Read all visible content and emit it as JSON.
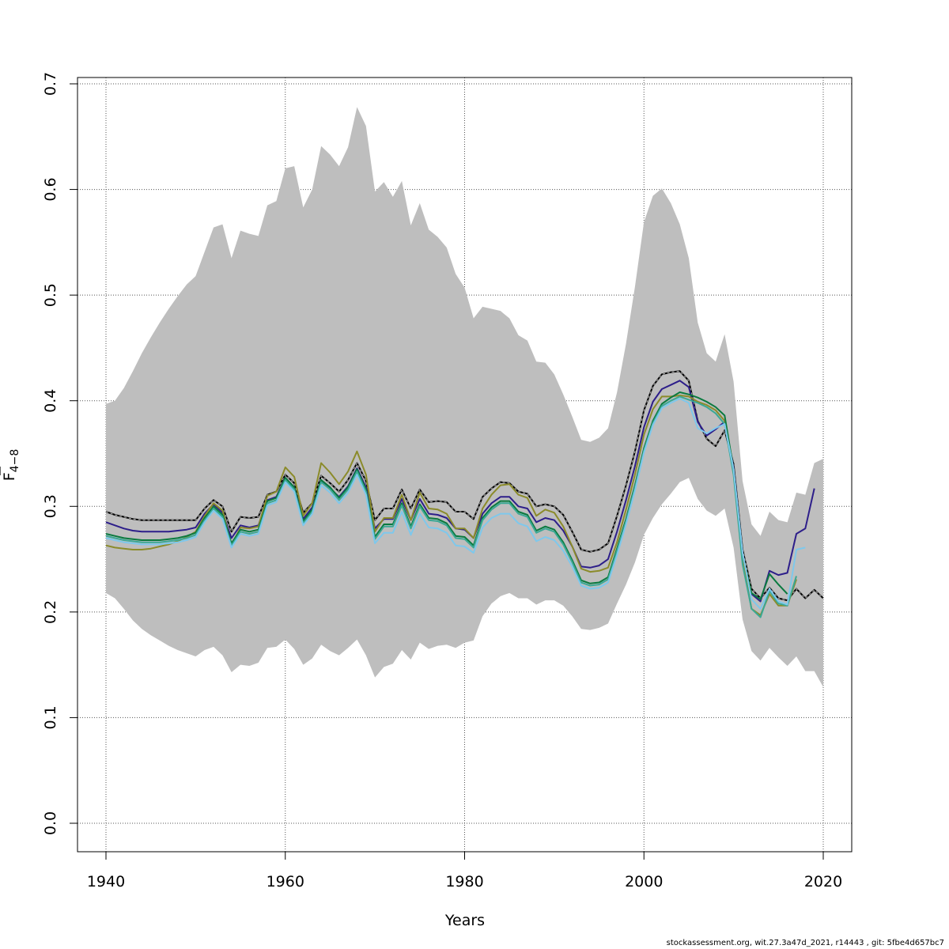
{
  "chart_data": {
    "type": "line",
    "xlabel": "Years",
    "ylabel": "F",
    "ylabel_sub": "4−8",
    "xlim": [
      1940,
      2020
    ],
    "ylim": [
      0.0,
      0.7
    ],
    "xticks": [
      "1940",
      "1960",
      "1980",
      "2000",
      "2020"
    ],
    "yticks": [
      "0.0",
      "0.1",
      "0.2",
      "0.3",
      "0.4",
      "0.5",
      "0.6",
      "0.7"
    ],
    "grid": true,
    "band_color": "#bebebe",
    "band_x": [
      1940,
      1941,
      1942,
      1943,
      1944,
      1945,
      1946,
      1947,
      1948,
      1949,
      1950,
      1951,
      1952,
      1953,
      1954,
      1955,
      1956,
      1957,
      1958,
      1959,
      1960,
      1961,
      1962,
      1963,
      1964,
      1965,
      1966,
      1967,
      1968,
      1969,
      1970,
      1971,
      1972,
      1973,
      1974,
      1975,
      1976,
      1977,
      1978,
      1979,
      1980,
      1981,
      1982,
      1983,
      1984,
      1985,
      1986,
      1987,
      1988,
      1989,
      1990,
      1991,
      1992,
      1993,
      1994,
      1995,
      1996,
      1997,
      1998,
      1999,
      2000,
      2001,
      2002,
      2003,
      2004,
      2005,
      2006,
      2007,
      2008,
      2009,
      2010,
      2011,
      2012,
      2013,
      2014,
      2015,
      2016,
      2017,
      2018,
      2019,
      2020
    ],
    "band_upper": [
      0.397,
      0.4,
      0.412,
      0.428,
      0.445,
      0.46,
      0.474,
      0.487,
      0.499,
      0.51,
      0.518,
      0.541,
      0.564,
      0.567,
      0.535,
      0.561,
      0.558,
      0.556,
      0.585,
      0.589,
      0.62,
      0.622,
      0.583,
      0.6,
      0.641,
      0.633,
      0.622,
      0.64,
      0.678,
      0.66,
      0.598,
      0.607,
      0.593,
      0.608,
      0.566,
      0.587,
      0.562,
      0.555,
      0.545,
      0.52,
      0.507,
      0.478,
      0.489,
      0.487,
      0.485,
      0.478,
      0.462,
      0.457,
      0.437,
      0.436,
      0.425,
      0.406,
      0.385,
      0.363,
      0.361,
      0.365,
      0.374,
      0.408,
      0.454,
      0.508,
      0.569,
      0.594,
      0.601,
      0.587,
      0.567,
      0.535,
      0.474,
      0.445,
      0.437,
      0.463,
      0.418,
      0.324,
      0.283,
      0.272,
      0.295,
      0.287,
      0.285,
      0.313,
      0.311,
      0.341,
      0.345
    ],
    "band_lower": [
      0.218,
      0.213,
      0.203,
      0.192,
      0.184,
      0.178,
      0.173,
      0.168,
      0.164,
      0.161,
      0.158,
      0.164,
      0.167,
      0.159,
      0.143,
      0.15,
      0.149,
      0.152,
      0.166,
      0.167,
      0.174,
      0.165,
      0.15,
      0.156,
      0.169,
      0.163,
      0.159,
      0.166,
      0.174,
      0.159,
      0.138,
      0.148,
      0.151,
      0.164,
      0.155,
      0.171,
      0.165,
      0.168,
      0.169,
      0.166,
      0.171,
      0.173,
      0.196,
      0.208,
      0.215,
      0.218,
      0.213,
      0.213,
      0.207,
      0.211,
      0.211,
      0.206,
      0.196,
      0.184,
      0.183,
      0.185,
      0.189,
      0.208,
      0.226,
      0.247,
      0.273,
      0.289,
      0.302,
      0.312,
      0.323,
      0.327,
      0.307,
      0.296,
      0.291,
      0.298,
      0.261,
      0.193,
      0.163,
      0.154,
      0.166,
      0.157,
      0.149,
      0.158,
      0.144,
      0.144,
      0.129
    ],
    "x": [
      1940,
      1941,
      1942,
      1943,
      1944,
      1945,
      1946,
      1947,
      1948,
      1949,
      1950,
      1951,
      1952,
      1953,
      1954,
      1955,
      1956,
      1957,
      1958,
      1959,
      1960,
      1961,
      1962,
      1963,
      1964,
      1965,
      1966,
      1967,
      1968,
      1969,
      1970,
      1971,
      1972,
      1973,
      1974,
      1975,
      1976,
      1977,
      1978,
      1979,
      1980,
      1981,
      1982,
      1983,
      1984,
      1985,
      1986,
      1987,
      1988,
      1989,
      1990,
      1991,
      1992,
      1993,
      1994,
      1995,
      1996,
      1997,
      1998,
      1999,
      2000,
      2001,
      2002,
      2003,
      2004,
      2005,
      2006,
      2007,
      2008,
      2009,
      2010,
      2011,
      2012,
      2013,
      2014,
      2015,
      2016,
      2017,
      2018,
      2019,
      2020
    ],
    "series": [
      {
        "color": "#000000",
        "dashed": false,
        "width": 2,
        "values": [
          0.295,
          0.292,
          0.29,
          0.288,
          0.287,
          0.287,
          0.287,
          0.287,
          0.287,
          0.287,
          0.287,
          0.298,
          0.306,
          0.3,
          0.276,
          0.29,
          0.289,
          0.29,
          0.311,
          0.314,
          0.33,
          0.322,
          0.294,
          0.303,
          0.329,
          0.322,
          0.314,
          0.325,
          0.341,
          0.324,
          0.287,
          0.298,
          0.298,
          0.316,
          0.298,
          0.316,
          0.304,
          0.305,
          0.304,
          0.295,
          0.295,
          0.288,
          0.309,
          0.317,
          0.323,
          0.322,
          0.314,
          0.312,
          0.3,
          0.302,
          0.3,
          0.292,
          0.276,
          0.259,
          0.257,
          0.259,
          0.265,
          0.291,
          0.32,
          0.352,
          0.391,
          0.414,
          0.425,
          0.427,
          0.428,
          0.419,
          0.381,
          0.364,
          0.357,
          0.372,
          0.34,
          0.259,
          0.222,
          0.213,
          0.223,
          0.213,
          0.211,
          0.222,
          0.213,
          0.221,
          0.213
        ]
      },
      {
        "color": "#999999",
        "dashed": true,
        "width": 1.2,
        "values": [
          0.295,
          0.292,
          0.29,
          0.288,
          0.287,
          0.287,
          0.287,
          0.287,
          0.287,
          0.287,
          0.287,
          0.298,
          0.306,
          0.3,
          0.276,
          0.29,
          0.289,
          0.29,
          0.311,
          0.314,
          0.33,
          0.322,
          0.294,
          0.303,
          0.329,
          0.322,
          0.314,
          0.325,
          0.341,
          0.324,
          0.287,
          0.298,
          0.298,
          0.316,
          0.298,
          0.316,
          0.304,
          0.305,
          0.304,
          0.295,
          0.295,
          0.288,
          0.309,
          0.317,
          0.323,
          0.322,
          0.314,
          0.312,
          0.3,
          0.302,
          0.3,
          0.292,
          0.276,
          0.259,
          0.257,
          0.259,
          0.265,
          0.291,
          0.32,
          0.352,
          0.391,
          0.414,
          0.425,
          0.427,
          0.428,
          0.419,
          0.381,
          0.364,
          0.357,
          0.372,
          0.34,
          0.259,
          0.222,
          0.213,
          0.223,
          0.213,
          0.211,
          0.222,
          0.213,
          0.221,
          0.213
        ]
      },
      {
        "color": "#2d1e8a",
        "dashed": false,
        "width": 2,
        "values": [
          0.285,
          0.282,
          0.279,
          0.277,
          0.276,
          0.276,
          0.276,
          0.276,
          0.277,
          0.278,
          0.28,
          0.293,
          0.302,
          0.294,
          0.27,
          0.282,
          0.28,
          0.282,
          0.306,
          0.309,
          0.327,
          0.318,
          0.288,
          0.299,
          0.324,
          0.317,
          0.309,
          0.319,
          0.336,
          0.318,
          0.279,
          0.288,
          0.288,
          0.307,
          0.287,
          0.307,
          0.293,
          0.292,
          0.289,
          0.279,
          0.278,
          0.27,
          0.293,
          0.303,
          0.309,
          0.309,
          0.3,
          0.298,
          0.285,
          0.289,
          0.287,
          0.277,
          0.262,
          0.243,
          0.242,
          0.244,
          0.25,
          0.276,
          0.306,
          0.338,
          0.375,
          0.399,
          0.411,
          0.415,
          0.419,
          0.413,
          0.38,
          0.367,
          0.373,
          0.38,
          0.337,
          0.254,
          0.217,
          0.21,
          0.239,
          0.235,
          0.237,
          0.274,
          0.279,
          0.317,
          null
        ]
      },
      {
        "color": "#8b8b2a",
        "dashed": false,
        "width": 2,
        "values": [
          0.263,
          0.261,
          0.26,
          0.259,
          0.259,
          0.26,
          0.262,
          0.264,
          0.267,
          0.271,
          0.276,
          0.291,
          0.303,
          0.296,
          0.263,
          0.28,
          0.279,
          0.281,
          0.31,
          0.314,
          0.337,
          0.328,
          0.291,
          0.303,
          0.341,
          0.332,
          0.321,
          0.333,
          0.352,
          0.33,
          0.276,
          0.289,
          0.289,
          0.311,
          0.287,
          0.313,
          0.298,
          0.297,
          0.293,
          0.279,
          0.279,
          0.27,
          0.298,
          0.311,
          0.32,
          0.321,
          0.311,
          0.308,
          0.291,
          0.297,
          0.294,
          0.281,
          0.262,
          0.241,
          0.238,
          0.239,
          0.242,
          0.266,
          0.297,
          0.33,
          0.368,
          0.392,
          0.404,
          0.404,
          0.405,
          0.404,
          0.399,
          0.396,
          0.391,
          0.381,
          0.335,
          0.25,
          0.203,
          0.197,
          0.217,
          0.206,
          0.206,
          0.231,
          null,
          null,
          null
        ]
      },
      {
        "color": "#0a7a3f",
        "dashed": false,
        "width": 2,
        "values": [
          0.274,
          0.272,
          0.27,
          0.269,
          0.268,
          0.268,
          0.268,
          0.269,
          0.27,
          0.272,
          0.275,
          0.289,
          0.3,
          0.292,
          0.265,
          0.278,
          0.276,
          0.278,
          0.305,
          0.308,
          0.327,
          0.318,
          0.286,
          0.297,
          0.325,
          0.318,
          0.308,
          0.318,
          0.335,
          0.316,
          0.271,
          0.283,
          0.283,
          0.303,
          0.281,
          0.302,
          0.289,
          0.288,
          0.284,
          0.272,
          0.271,
          0.263,
          0.289,
          0.299,
          0.305,
          0.305,
          0.295,
          0.292,
          0.277,
          0.281,
          0.278,
          0.266,
          0.249,
          0.23,
          0.227,
          0.228,
          0.233,
          0.26,
          0.288,
          0.32,
          0.355,
          0.381,
          0.397,
          0.403,
          0.408,
          0.406,
          0.403,
          0.399,
          0.394,
          0.386,
          0.335,
          0.254,
          0.218,
          0.212,
          0.236,
          0.226,
          0.217,
          null,
          null,
          null,
          null
        ]
      },
      {
        "color": "#3aa894",
        "dashed": false,
        "width": 2,
        "values": [
          0.272,
          0.27,
          0.268,
          0.267,
          0.266,
          0.266,
          0.266,
          0.267,
          0.268,
          0.27,
          0.273,
          0.287,
          0.298,
          0.29,
          0.263,
          0.276,
          0.274,
          0.276,
          0.303,
          0.306,
          0.325,
          0.316,
          0.284,
          0.295,
          0.323,
          0.316,
          0.306,
          0.316,
          0.333,
          0.314,
          0.269,
          0.281,
          0.281,
          0.301,
          0.279,
          0.3,
          0.287,
          0.286,
          0.282,
          0.27,
          0.269,
          0.261,
          0.287,
          0.297,
          0.303,
          0.303,
          0.293,
          0.29,
          0.275,
          0.279,
          0.276,
          0.264,
          0.247,
          0.228,
          0.225,
          0.226,
          0.231,
          0.258,
          0.286,
          0.318,
          0.353,
          0.379,
          0.395,
          0.4,
          0.404,
          0.401,
          0.398,
          0.394,
          0.388,
          0.378,
          0.33,
          0.245,
          0.203,
          0.195,
          0.22,
          0.208,
          0.206,
          0.234,
          null,
          null,
          null
        ]
      },
      {
        "color": "#7ec8ec",
        "dashed": false,
        "width": 2,
        "values": [
          0.27,
          0.268,
          0.266,
          0.265,
          0.264,
          0.264,
          0.264,
          0.265,
          0.266,
          0.268,
          0.271,
          0.285,
          0.296,
          0.288,
          0.261,
          0.274,
          0.272,
          0.274,
          0.301,
          0.304,
          0.323,
          0.314,
          0.282,
          0.293,
          0.32,
          0.313,
          0.303,
          0.313,
          0.33,
          0.311,
          0.265,
          0.275,
          0.275,
          0.295,
          0.273,
          0.293,
          0.28,
          0.279,
          0.275,
          0.263,
          0.262,
          0.256,
          0.28,
          0.289,
          0.293,
          0.293,
          0.284,
          0.281,
          0.267,
          0.271,
          0.268,
          0.258,
          0.243,
          0.225,
          0.222,
          0.223,
          0.228,
          0.254,
          0.283,
          0.315,
          0.351,
          0.377,
          0.393,
          0.398,
          0.402,
          0.398,
          0.374,
          0.369,
          0.374,
          0.378,
          0.335,
          0.256,
          0.212,
          0.203,
          0.222,
          0.21,
          0.207,
          0.259,
          0.261,
          null,
          null
        ]
      }
    ]
  },
  "footer": "stockassessment.org, wit.27.3a47d_2021, r14443 , git: 5fbe4d657bc7"
}
